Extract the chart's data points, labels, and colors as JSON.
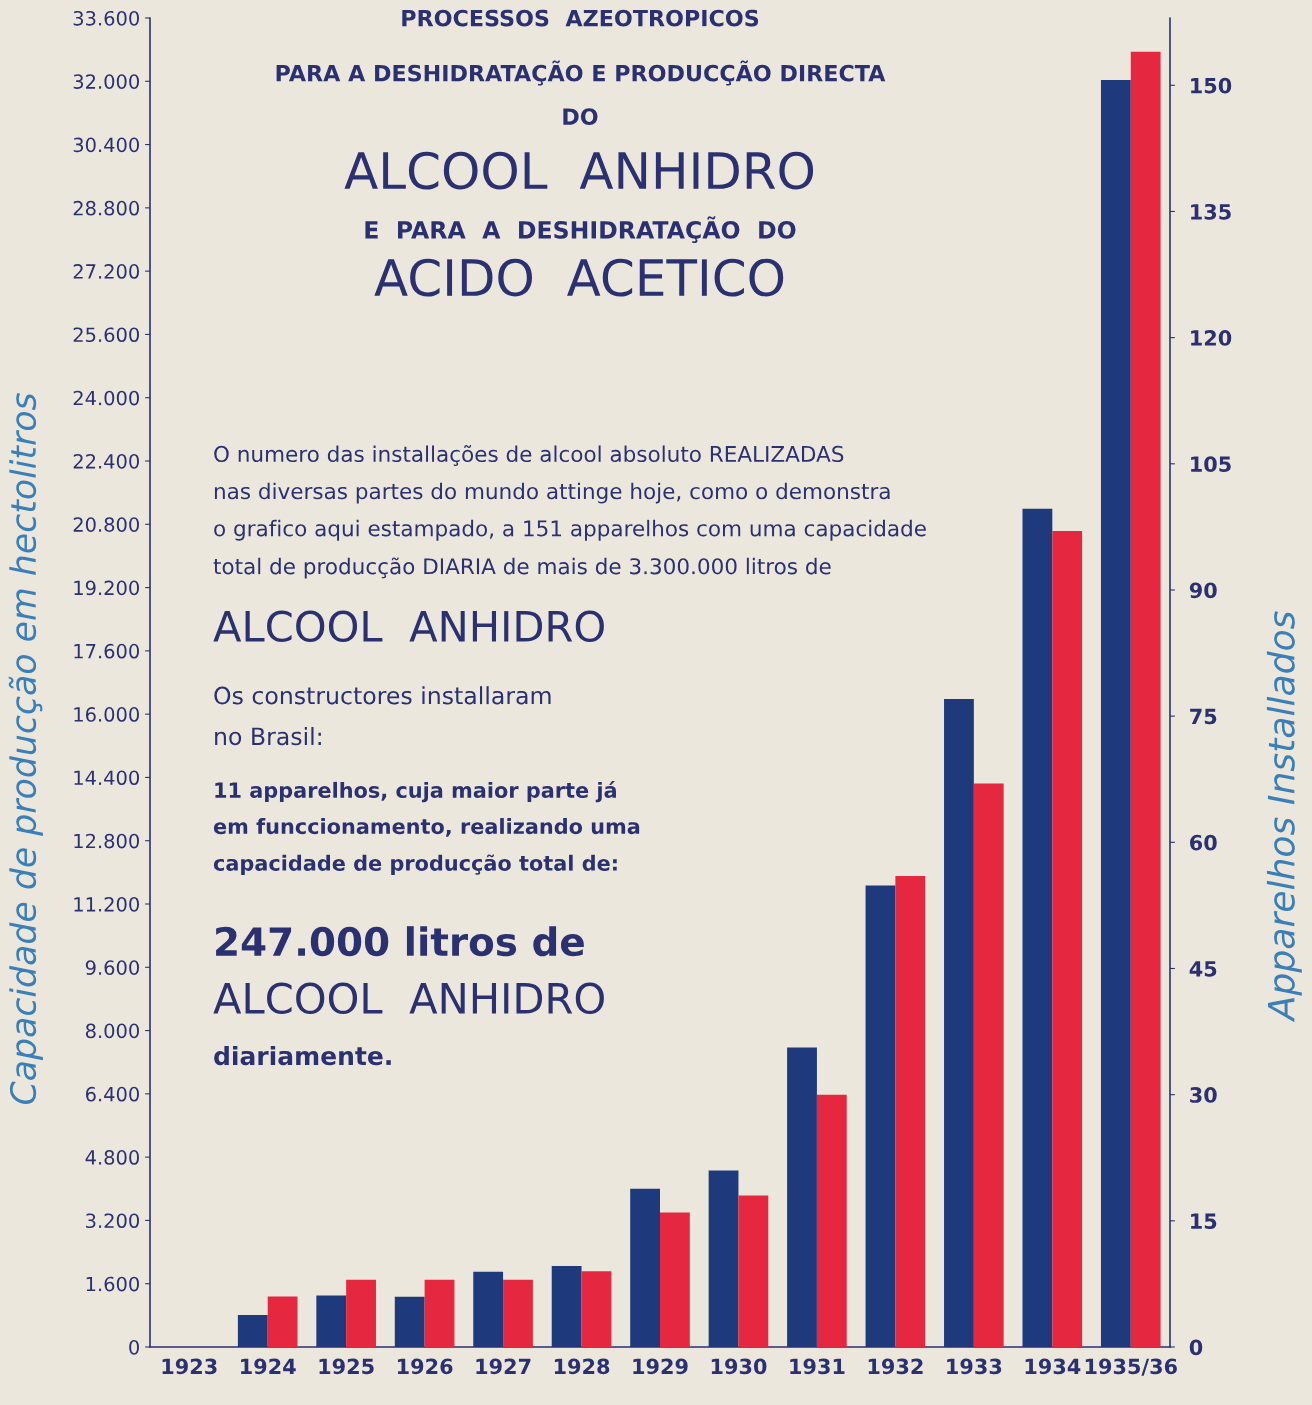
{
  "chart_data": {
    "type": "bar",
    "title": "PROCESSOS  AZEOTROPICOS",
    "subtitle": "PARA A DESHIDRATAÇÃO E PRODUCÇÃO DIRECTA\nDO",
    "ylabel": "Capacidade de producção em hectolitros",
    "y2label": "Apparelhos Installados",
    "categories": [
      "1923",
      "1924",
      "1925",
      "1926",
      "1927",
      "1928",
      "1929",
      "1930",
      "1931",
      "1932",
      "1933",
      "1934",
      "1935/36"
    ],
    "series": [
      {
        "color": "#1f3a7c",
        "values": [
          0,
          810,
          1300,
          1270,
          1900,
          2050,
          4000,
          4460,
          7570,
          11670,
          16380,
          21190,
          32030
        ]
      },
      {
        "color": "#e52840",
        "axis": "y2",
        "values": [
          0,
          6,
          8,
          8,
          8,
          9,
          16,
          18,
          30,
          56,
          67,
          97,
          154
        ]
      }
    ],
    "ylim": [
      0,
      33600
    ],
    "yticks": [
      {
        "value": 0,
        "label": "0"
      },
      {
        "value": 1600,
        "label": "1.600"
      },
      {
        "value": 3200,
        "label": "3.200"
      },
      {
        "value": 4800,
        "label": "4.800"
      },
      {
        "value": 6400,
        "label": "6.400"
      },
      {
        "value": 8000,
        "label": "8.000"
      },
      {
        "value": 9600,
        "label": "9.600"
      },
      {
        "value": 11200,
        "label": "11.200"
      },
      {
        "value": 12800,
        "label": "12.800"
      },
      {
        "value": 14400,
        "label": "14.400"
      },
      {
        "value": 16000,
        "label": "16.000"
      },
      {
        "value": 17600,
        "label": "17.600"
      },
      {
        "value": 19200,
        "label": "19.200"
      },
      {
        "value": 20800,
        "label": "20.800"
      },
      {
        "value": 22400,
        "label": "22.400"
      },
      {
        "value": 24000,
        "label": "24.000"
      },
      {
        "value": 25600,
        "label": "25.600"
      },
      {
        "value": 27200,
        "label": "27.200"
      },
      {
        "value": 28800,
        "label": "28.800"
      },
      {
        "value": 30400,
        "label": "30.400"
      },
      {
        "value": 32000,
        "label": "32.000"
      },
      {
        "value": 33600,
        "label": "33.600"
      }
    ],
    "y2lim": [
      0,
      158
    ],
    "y2ticks": [
      0,
      15,
      30,
      45,
      60,
      75,
      90,
      105,
      120,
      135,
      150
    ],
    "grid": false,
    "annotations": [
      "ALCOOL  ANHIDRO",
      "E  PARA  A  DESHIDRATAÇÃO  DO",
      "ACIDO  ACETICO",
      "O numero das installações de alcool absoluto REALIZADAS\nnas diversas partes do mundo attinge hoje, como o demonstra\no grafico aqui estampado, a 151 apparelhos com uma capacidade\ntotal de producção DIARIA de mais de 3.300.000 litros de",
      "ALCOOL  ANHIDRO",
      "Os constructores installaram\nno Brasil:",
      "11 apparelhos, cuja maior parte já\nem funccionamento, realizando uma\ncapacidade de producção total de:",
      "247.000 litros de",
      "ALCOOL  ANHIDRO",
      "diariamente."
    ]
  }
}
